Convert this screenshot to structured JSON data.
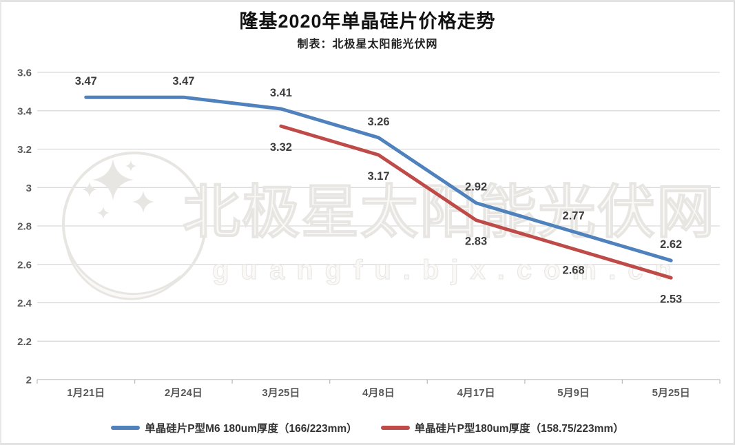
{
  "chart_data": {
    "type": "line",
    "title": "隆基2020年单晶硅片价格走势",
    "subtitle": "制表：北极星太阳能光伏网",
    "categories": [
      "1月21日",
      "2月24日",
      "3月25日",
      "4月8日",
      "4月17日",
      "5月9日",
      "5月25日"
    ],
    "series": [
      {
        "name": "单晶硅片P型M6 180um厚度（166/223mm）",
        "color": "#4F81BD",
        "values": [
          3.47,
          3.47,
          3.41,
          3.26,
          2.92,
          2.77,
          2.62
        ],
        "label_position": "above"
      },
      {
        "name": "单晶硅片P型180um厚度（158.75/223mm）",
        "color": "#BE4B48",
        "values": [
          null,
          null,
          3.32,
          3.17,
          2.83,
          2.68,
          2.53
        ],
        "label_position": "below"
      }
    ],
    "ylim": [
      2,
      3.6
    ],
    "yticks": [
      "2",
      "2.2",
      "2.4",
      "2.6",
      "2.8",
      "3",
      "3.2",
      "3.4",
      "3.6"
    ],
    "grid": true,
    "legend_position": "bottom",
    "data_labels_decimals": 2
  },
  "watermark": {
    "logo": "bjx-moon-stars-logo",
    "line1": "北极星太阳能光伏网",
    "line2": "guangfu.bjx.com.cn"
  },
  "colors": {
    "gridline": "#d9d9d9",
    "axis_line": "#bfbfbf",
    "axis_text": "#595959",
    "data_label_text": "#3d3d3d",
    "watermark_fill": "#faf9f7",
    "watermark_stroke": "#e8e6e2"
  }
}
